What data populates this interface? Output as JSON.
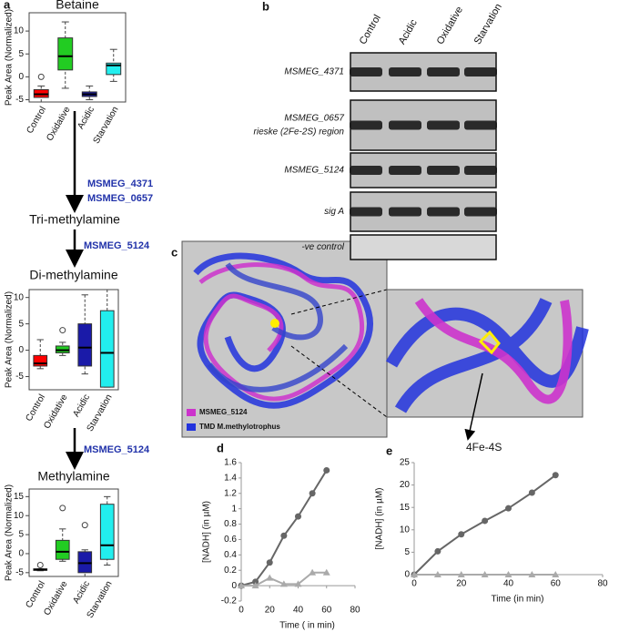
{
  "chart_data": [
    {
      "type": "box",
      "title": "Betaine",
      "ylabel": "Peak Area (Normalized)",
      "categories": [
        "Control",
        "Oxidative",
        "Acidic",
        "Starvation"
      ],
      "colors": [
        "#ff0000",
        "#22cc22",
        "#1a1aa8",
        "#22eeee"
      ],
      "boxes": [
        {
          "min": -5.5,
          "q1": -4.5,
          "median": -3.8,
          "q3": -2.8,
          "max": -2,
          "outliers": [
            0
          ]
        },
        {
          "min": -2.5,
          "q1": 1.5,
          "median": 4.5,
          "q3": 8.5,
          "max": 12,
          "outliers": []
        },
        {
          "min": -5,
          "q1": -4.3,
          "median": -3.8,
          "q3": -3.3,
          "max": -2,
          "outliers": []
        },
        {
          "min": -1,
          "q1": 0.5,
          "median": 2.5,
          "q3": 3,
          "max": 6,
          "outliers": []
        }
      ],
      "ylim": [
        -5.5,
        14
      ],
      "yticks": [
        -5,
        0,
        5,
        10
      ]
    },
    {
      "type": "box",
      "title": "Di-methylamine",
      "ylabel": "Peak Area (Normalized)",
      "categories": [
        "Control",
        "Oxidative",
        "Acidic",
        "Starvation"
      ],
      "colors": [
        "#ff0000",
        "#22cc22",
        "#1a1aa8",
        "#22eeee"
      ],
      "boxes": [
        {
          "min": -3.5,
          "q1": -3,
          "median": -2.5,
          "q3": -1,
          "max": 2,
          "outliers": []
        },
        {
          "min": -1,
          "q1": -0.5,
          "median": 0,
          "q3": 0.8,
          "max": 1.5,
          "outliers": [
            3.8
          ]
        },
        {
          "min": -4.5,
          "q1": -3,
          "median": 0.5,
          "q3": 5,
          "max": 10.5,
          "outliers": []
        },
        {
          "min": -7,
          "q1": -7,
          "median": -0.5,
          "q3": 7.5,
          "max": 11.5,
          "outliers": []
        }
      ],
      "ylim": [
        -7.5,
        11.5
      ],
      "yticks": [
        -5,
        0,
        5,
        10
      ]
    },
    {
      "type": "box",
      "title": "Methylamine",
      "ylabel": "Peak Area (Normalized)",
      "categories": [
        "Control",
        "Oxidative",
        "Acidic",
        "Starvation"
      ],
      "colors": [
        "#111111",
        "#22cc22",
        "#1a1aa8",
        "#22eeee"
      ],
      "boxes": [
        {
          "min": -4.5,
          "q1": -4.4,
          "median": -4.2,
          "q3": -4,
          "max": -4,
          "outliers": [
            -3
          ]
        },
        {
          "min": -2,
          "q1": -1.5,
          "median": 0.5,
          "q3": 3.5,
          "max": 6.5,
          "outliers": [
            12
          ]
        },
        {
          "min": -6,
          "q1": -5,
          "median": -2.5,
          "q3": 0.5,
          "max": 1,
          "outliers": [
            7.5
          ]
        },
        {
          "min": -3,
          "q1": -1.5,
          "median": 2.2,
          "q3": 13,
          "max": 15,
          "outliers": []
        }
      ],
      "ylim": [
        -6,
        17
      ],
      "yticks": [
        -5,
        0,
        5,
        10,
        15
      ]
    },
    {
      "type": "line",
      "ylabel": "[NADH]  (in µM)",
      "xlabel": "Time ( in min)",
      "x": [
        0,
        10,
        20,
        30,
        40,
        50,
        60
      ],
      "series": [
        {
          "color": "#666666",
          "marker": "circle",
          "values": [
            0,
            0.05,
            0.3,
            0.65,
            0.9,
            1.2,
            1.5
          ]
        },
        {
          "color": "#aaaaaa",
          "marker": "triangle",
          "values": [
            0,
            0,
            0.1,
            0.02,
            0.02,
            0.17,
            0.17
          ]
        }
      ],
      "xlim": [
        0,
        80
      ],
      "xticks": [
        0,
        20,
        40,
        60,
        80
      ],
      "ylim": [
        -0.2,
        1.6
      ],
      "yticks": [
        -0.2,
        0,
        0.2,
        0.4,
        0.6,
        0.8,
        1,
        1.2,
        1.4,
        1.6
      ]
    },
    {
      "type": "line",
      "ylabel": "[NADH]  (in µM)",
      "xlabel": "Time (in min)",
      "x": [
        0,
        10,
        20,
        30,
        40,
        50,
        60
      ],
      "series": [
        {
          "color": "#666666",
          "marker": "circle",
          "values": [
            0,
            5.2,
            9,
            12,
            14.8,
            18.3,
            22.2
          ]
        },
        {
          "color": "#aaaaaa",
          "marker": "triangle",
          "values": [
            0,
            0,
            0,
            0,
            0,
            0,
            0
          ]
        }
      ],
      "xlim": [
        0,
        80
      ],
      "xticks": [
        0,
        20,
        40,
        60,
        80
      ],
      "ylim": [
        0,
        25
      ],
      "yticks": [
        0,
        5,
        10,
        15,
        20,
        25
      ]
    }
  ],
  "panels": [
    "a",
    "b",
    "c",
    "d",
    "e"
  ],
  "pathway": {
    "step1": [
      "MSMEG_4371",
      "MSMEG_0657"
    ],
    "intermediate": "Tri-methylamine",
    "step2": "MSMEG_5124",
    "step3": "MSMEG_5124"
  },
  "gel": {
    "lanes": [
      "Control",
      "Acidic",
      "Oxidative",
      "Starvation"
    ],
    "rows": [
      {
        "lines": [
          "MSMEG_4371"
        ]
      },
      {
        "lines": [
          "MSMEG_0657",
          "rieske (2Fe-2S) region"
        ]
      },
      {
        "lines": [
          "MSMEG_5124"
        ]
      },
      {
        "lines": [
          "sig A"
        ]
      },
      {
        "lines": [
          "-ve control"
        ]
      }
    ]
  },
  "structure": {
    "legend": [
      "MSMEG_5124",
      "TMD M.methylotrophus"
    ],
    "annotation": "4Fe-4S"
  }
}
